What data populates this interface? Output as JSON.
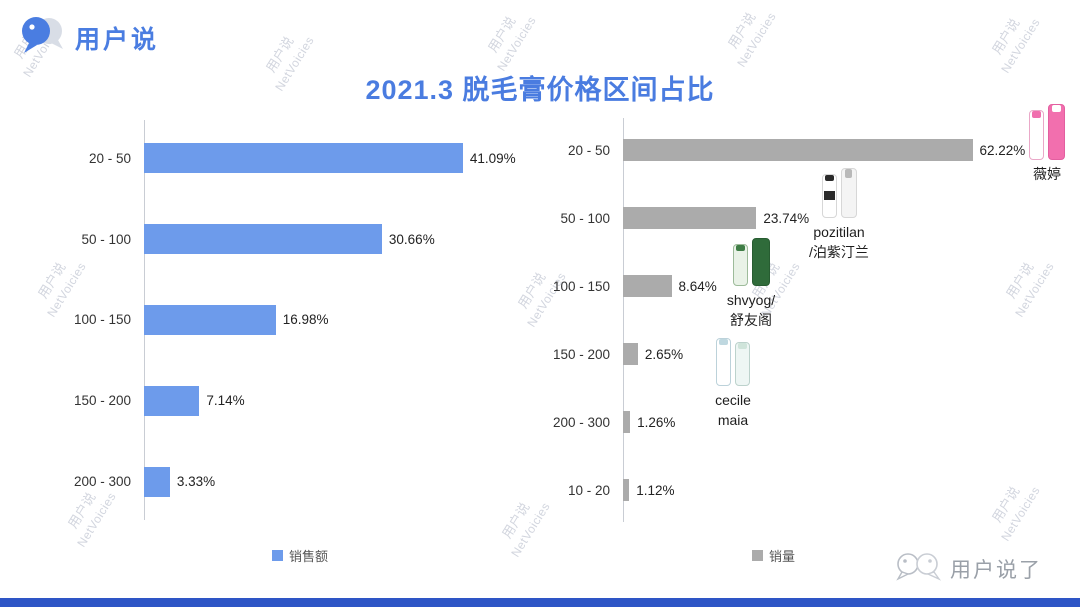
{
  "page": {
    "brand": "用户说",
    "title": "2021.3 脱毛膏价格区间占比"
  },
  "watermark": {
    "line1": "用户说",
    "line2": "NetVoicies"
  },
  "colors": {
    "title_blue": "#4a7ce0",
    "bar_blue": "#6d9beb",
    "bar_gray": "#ababab",
    "watermark_gray": "#c3c8d4",
    "bottom_strip_blue": "#2e55c6"
  },
  "chart_data": [
    {
      "type": "bar",
      "orientation": "horizontal",
      "categories": [
        "20 - 50",
        "50 - 100",
        "100 - 150",
        "150 - 200",
        "200 - 300"
      ],
      "values": [
        41.09,
        30.66,
        16.98,
        7.14,
        3.33
      ],
      "value_labels": [
        "41.09%",
        "30.66%",
        "16.98%",
        "7.14%",
        "3.33%"
      ],
      "legend": "销售额",
      "legend_position": "bottom",
      "bar_color": "#6d9beb",
      "xlim": [
        0,
        50
      ],
      "grid": false
    },
    {
      "type": "bar",
      "orientation": "horizontal",
      "categories": [
        "20 - 50",
        "50 - 100",
        "100 - 150",
        "150 - 200",
        "200 - 300",
        "10 - 20"
      ],
      "values": [
        62.22,
        23.74,
        8.64,
        2.65,
        1.26,
        1.12
      ],
      "value_labels": [
        "62.22%",
        "23.74%",
        "8.64%",
        "2.65%",
        "1.26%",
        "1.12%"
      ],
      "legend": "销量",
      "legend_position": "bottom",
      "bar_color": "#ababab",
      "xlim": [
        0,
        68
      ],
      "grid": false
    }
  ],
  "products": [
    {
      "name": "薇婷",
      "lines": [
        "薇婷"
      ]
    },
    {
      "name": "pozitilan/泊紫汀兰",
      "lines": [
        "pozitilan",
        "/泊紫汀兰"
      ]
    },
    {
      "name": "shvyog/舒友阁",
      "lines": [
        "shvyog/",
        "舒友阁"
      ]
    },
    {
      "name": "cecile maia",
      "lines": [
        "cecile",
        "maia"
      ]
    }
  ],
  "footer": {
    "brand": "用户说了"
  }
}
